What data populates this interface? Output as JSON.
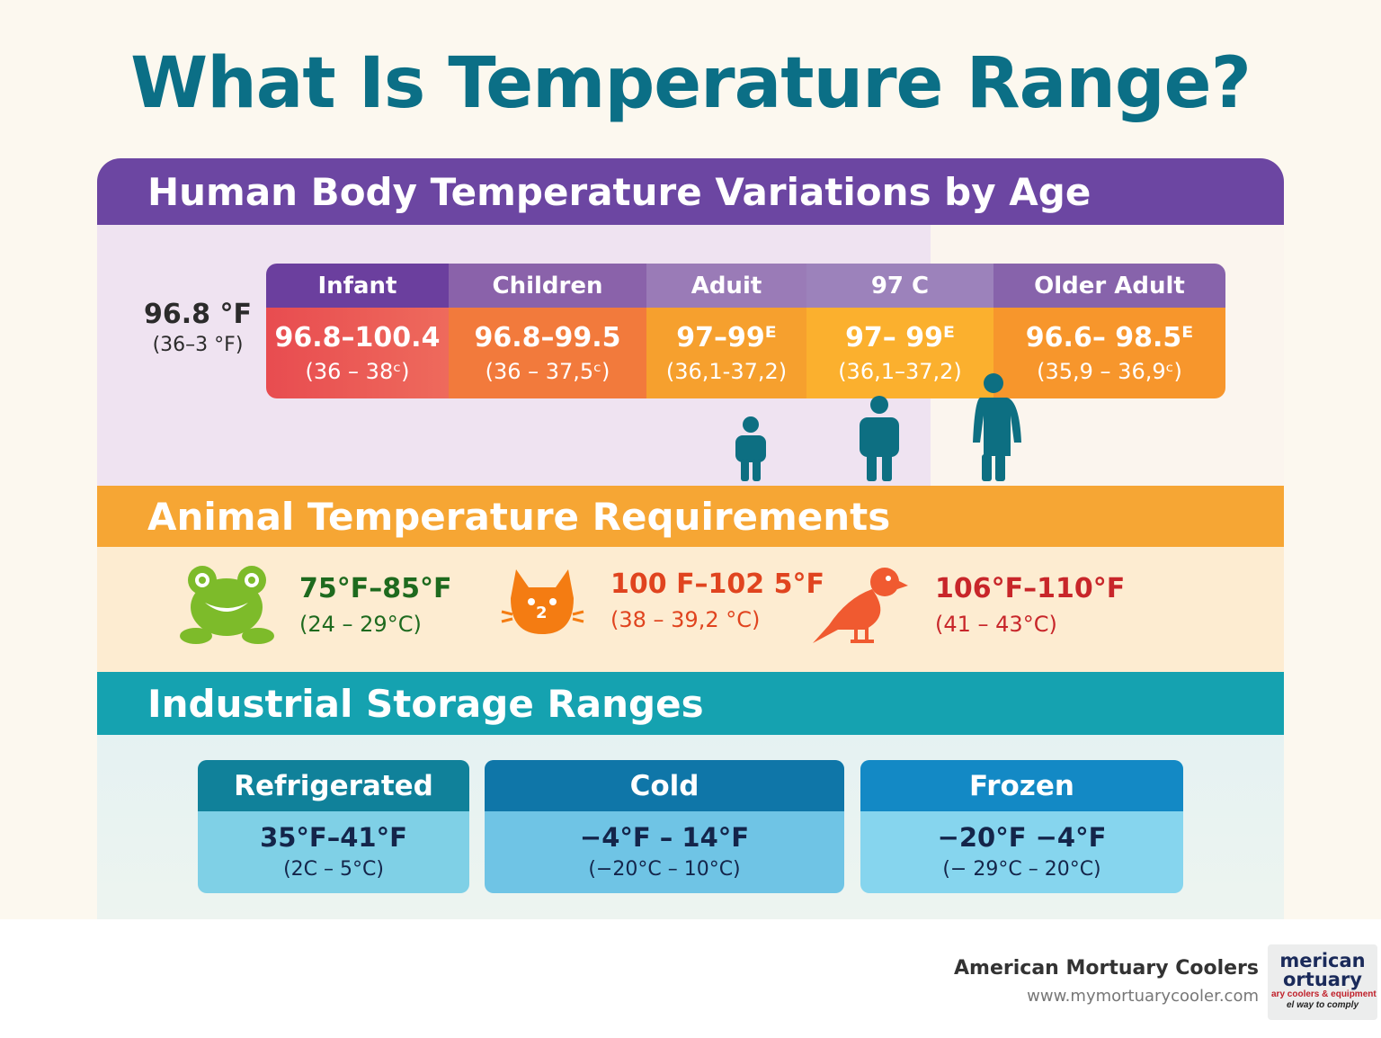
{
  "title": "What Is Temperature Range?",
  "human": {
    "heading": "Human Body Temperature Variations by Age",
    "side_label": {
      "f": "96.8 °F",
      "c": "(36–3 °F)"
    },
    "columns": [
      {
        "label": "Infant",
        "f": "96.8–100.4",
        "c": "(36 – 38ᶜ)",
        "header_color": "#6b3f9e",
        "color": "#ea5353"
      },
      {
        "label": "Children",
        "f": "96.8–99.5",
        "c": "(36 – 37,5ᶜ)",
        "header_color": "#8a62aa",
        "color": "#f27a3c"
      },
      {
        "label": "Aduit",
        "f": "97–99ᴱ",
        "c": "(36,1-37,2)",
        "header_color": "#9a7bb7",
        "color": "#f6a02e"
      },
      {
        "label": "97 C",
        "f": "97– 99ᴱ",
        "c": "(36,1–37,2)",
        "header_color": "#9c82bb",
        "color": "#fbb02e"
      },
      {
        "label": "Older Adult",
        "f": "96.6– 98.5ᴱ",
        "c": "(35,9 – 36,9ᶜ)",
        "header_color": "#8763ab",
        "color": "#f7962c"
      }
    ]
  },
  "animals": {
    "heading": "Animal Temperature Requirements",
    "items": [
      {
        "icon": "frog-icon",
        "f": "75°F–85°F",
        "c": "(24 – 29°C)",
        "color": "#1e6a1e"
      },
      {
        "icon": "cat-icon",
        "badge": "2",
        "f": "100 F–102 5°F",
        "c": "(38 – 39,2 °C)",
        "color": "#e0441f"
      },
      {
        "icon": "bird-icon",
        "f": "106°F–110°F",
        "c": "(41 – 43°C)",
        "color": "#c8262a"
      }
    ]
  },
  "industrial": {
    "heading": "Industrial Storage Ranges",
    "cards": [
      {
        "label": "Refrigerated",
        "f": "35°F–41°F",
        "c": "(2C – 5°C)"
      },
      {
        "label": "Cold",
        "f": "−4°F – 14°F",
        "c": "(−20°C – 10°C)"
      },
      {
        "label": "Frozen",
        "f": "−20°F  −4°F",
        "c": "(− 29°C – 20°C)"
      }
    ]
  },
  "footer": {
    "brand": "American Mortuary Coolers",
    "url": "www.mymortuarycooler.com",
    "logo_lines": [
      "merican",
      "ortuary",
      "ary coolers & equipment",
      "el way to comply"
    ]
  }
}
